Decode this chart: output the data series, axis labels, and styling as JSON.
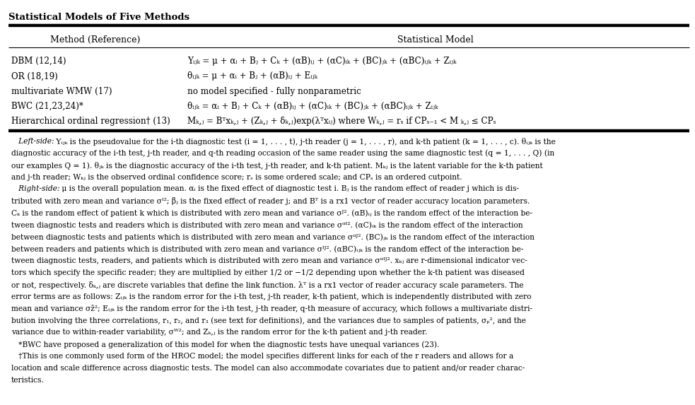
{
  "title": "Statistical Models of Five Methods",
  "col1_header": "Method (Reference)",
  "col2_header": "Statistical Model",
  "methods": [
    "DBM (12,14)",
    "OR (18,19)",
    "multivariate WMW (17)",
    "BWC (21,23,24)*",
    "Hierarchical ordinal regression† (13)"
  ],
  "models_display": [
    "Yᵢⱼₖ = μ + αᵢ + Bⱼ + Cₖ + (αB)ᵢⱼ + (αC)ᵢₖ + (BC)ⱼₖ + (αBC)ᵢⱼₖ + Zᵢⱼₖ",
    "θᵢⱼₖ = μ + αᵢ + Bⱼ + (αB)ᵢⱼ + Eᵢⱼₖ",
    "no model specified - fully nonparametric",
    "θᵢⱼₖ = αᵢ + Bⱼ + Cₖ + (αB)ᵢⱼ + (αC)ᵢₖ + (BC)ⱼₖ + (αBC)ᵢⱼₖ + Zᵢⱼₖ",
    "Mₖ,ⱼ = Bᵀxₖ,ⱼ + (Zₖ,ⱼ + δₖ,ⱼ)exp(λᵀxᵢⱼ) where Wₖ,ⱼ = rₛ if CPₛ₋₁ < M ₖ,ⱼ ≤ CPₛ"
  ],
  "footnote_lines": [
    "   Left-side: Yᵢⱼₖ is the pseudovalue for the i-th diagnostic test (i = 1, . . . , t), j-th reader (j = 1, . . . , r), and k-th patient (k = 1, . . . , c). θᵢⱼₖ is the",
    "diagnostic accuracy of the i-th test, j-th reader, and q-th reading occasion of the same reader using the same diagnostic test (q = 1, . . . , Q) (in",
    "our examples Q = 1). θⱼₖ is the diagnostic accuracy of the i-th test, j-th reader, and k-th patient. Mₖⱼ is the latent variable for the k-th patient",
    "and j-th reader; Wₖⱼ is the observed ordinal confidence score; rₛ is some ordered scale; and CPₛ is an ordered cutpoint.",
    "   Right-side: μ is the overall population mean. αᵢ is the fixed effect of diagnostic test i. Bⱼ is the random effect of reader j which is dis-",
    "tributed with zero mean and variance σᴵ²; βⱼ is the fixed effect of reader j; and Bᵀ is a rx1 vector of reader accuracy location parameters.",
    "Cₖ is the random effect of patient k which is distributed with zero mean and variance σᴶ². (αB)ᵢⱼ is the random effect of the interaction be-",
    "tween diagnostic tests and readers which is distributed with zero mean and variance σᵅᴵ². (αC)ᵢₖ is the random effect of the interaction",
    "between diagnostic tests and patients which is distributed with zero mean and variance σᵅᴶ². (BC)ⱼₖ is the random effect of the interaction",
    "between readers and patients which is distributed with zero mean and variance σᴵᴶ². (αBC)ᵢⱼₖ is the random effect of the interaction be-",
    "tween diagnostic tests, readers, and patients which is distributed with zero mean and variance σᵅᴵᴶ². xₖⱼ are r-dimensional indicator vec-",
    "tors which specify the specific reader; they are multiplied by either 1/2 or −1/2 depending upon whether the k-th patient was diseased",
    "or not, respectively. δₖ,ⱼ are discrete variables that define the link function. λᵀ is a rx1 vector of reader accuracy scale parameters. The",
    "error terms are as follows: Zᵢⱼₖ is the random error for the i-th test, j-th reader, k-th patient, which is independently distributed with zero",
    "mean and variance σẑ²; Eᵢⱼₖ is the random error for the i-th test, j-th reader, q-th measure of accuracy, which follows a multivariate distri-",
    "bution involving the three correlations, r₁, r₂, and r₃ (see text for definitions), and the variances due to samples of patients, σₚ², and the",
    "variance due to within-reader variability, σᵂ²; and Zₖ,ⱼ is the random error for the k-th patient and j-th reader.",
    "   *BWC have proposed a generalization of this model for when the diagnostic tests have unequal variances (23).",
    "   †This is one commonly used form of the HROC model; the model specifies different links for each of the r readers and allows for a",
    "location and scale difference across diagnostic tests. The model can also accommodate covariates due to patient and/or reader charac-",
    "teristics."
  ],
  "italic_line_indices": [
    0,
    4
  ],
  "italic_prefixes": [
    "   Left-side:",
    "   Right-side:"
  ],
  "bg_color": "#ffffff",
  "text_color": "#000000",
  "title_fontsize": 9.5,
  "header_fontsize": 9.0,
  "body_fontsize": 8.6,
  "footnote_fontsize": 7.7,
  "lm": 0.012,
  "rm": 0.992,
  "col_split": 0.262
}
